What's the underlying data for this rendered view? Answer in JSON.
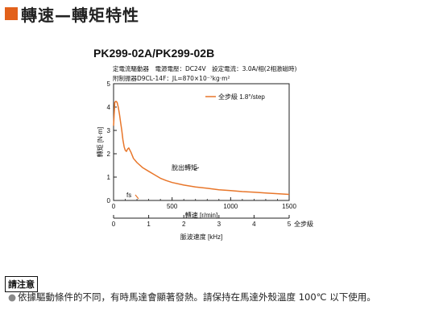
{
  "header": {
    "title": "轉速—轉矩特性",
    "accent_color": "#e2611b"
  },
  "model": "PK299-02A/PK299-02B",
  "specs": {
    "line1": "定電流驅動器　電源電壓：DC24V　設定電流：3.0A/相(2相激磁時)",
    "line2": "附制振器D9CL-14F：JL=870×10⁻⁷kg·m²"
  },
  "chart_data": {
    "type": "line",
    "ylabel": "轉矩 [N·m]",
    "xlabel": "轉速 [r/min]",
    "x2label": "脈波速度 [kHz]",
    "x2_note": "全步級",
    "ylim": [
      0,
      5
    ],
    "xlim": [
      0,
      1500
    ],
    "x2lim": [
      0,
      5
    ],
    "yticks": [
      "0",
      "1",
      "2",
      "3",
      "4",
      "5"
    ],
    "xticks": [
      "0",
      "500",
      "1000",
      "1500"
    ],
    "x2ticks": [
      "0",
      "1",
      "2",
      "3",
      "4",
      "5"
    ],
    "grid": false,
    "line_color": "#e8762a",
    "series": [
      {
        "name": "全步級  1.8°/step",
        "x": [
          0,
          10,
          20,
          30,
          40,
          50,
          60,
          70,
          80,
          90,
          100,
          110,
          120,
          130,
          150,
          170,
          200,
          250,
          300,
          350,
          400,
          450,
          500,
          600,
          700,
          800,
          900,
          1000,
          1100,
          1200,
          1300,
          1400,
          1500
        ],
        "y": [
          3.2,
          4.2,
          4.25,
          4.2,
          4.0,
          3.7,
          3.35,
          3.0,
          2.6,
          2.3,
          2.15,
          2.1,
          2.2,
          2.25,
          2.05,
          1.8,
          1.62,
          1.4,
          1.25,
          1.1,
          0.95,
          0.85,
          0.77,
          0.66,
          0.58,
          0.52,
          0.46,
          0.42,
          0.38,
          0.35,
          0.32,
          0.29,
          0.26
        ]
      }
    ],
    "annotations": {
      "pullout": "脫出轉矩",
      "fs": "fs"
    }
  },
  "notice": {
    "label": "請注意",
    "text": "依據驅動條件的不同，有時馬達會顯著發熱。請保持在馬達外殼溫度 100℃ 以下使用。"
  }
}
